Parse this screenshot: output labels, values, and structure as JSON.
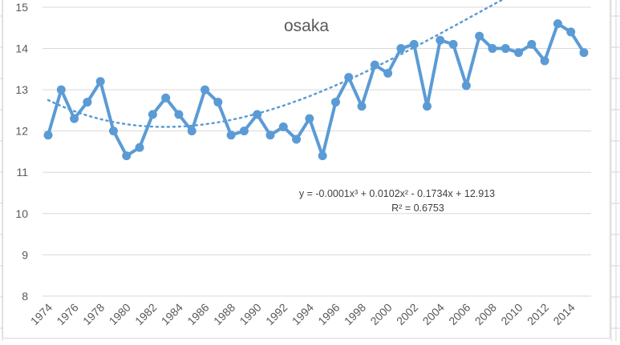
{
  "chart_data": {
    "type": "line",
    "title": "osaka",
    "xlabel": "",
    "ylabel": "",
    "ylim": [
      8,
      15
    ],
    "yticks": [
      8,
      9,
      10,
      11,
      12,
      13,
      14,
      15
    ],
    "x_tick_labels": [
      "1974",
      "1976",
      "1978",
      "1980",
      "1982",
      "1984",
      "1986",
      "1988",
      "1990",
      "1992",
      "1994",
      "1996",
      "1998",
      "2000",
      "2002",
      "2004",
      "2006",
      "2008",
      "2010",
      "2012",
      "2014"
    ],
    "grid": true,
    "legend": null,
    "x": [
      1974,
      1975,
      1976,
      1977,
      1978,
      1979,
      1980,
      1981,
      1982,
      1983,
      1984,
      1985,
      1986,
      1987,
      1988,
      1989,
      1990,
      1991,
      1992,
      1993,
      1994,
      1995,
      1996,
      1997,
      1998,
      1999,
      2000,
      2001,
      2002,
      2003,
      2004,
      2005,
      2006,
      2007,
      2008,
      2009,
      2010,
      2011,
      2012,
      2013,
      2014,
      2015
    ],
    "series": [
      {
        "name": "osaka",
        "color": "#5b9bd5",
        "values": [
          11.9,
          13.0,
          12.3,
          12.7,
          13.2,
          12.0,
          11.4,
          11.6,
          12.4,
          12.8,
          12.4,
          12.0,
          13.0,
          12.7,
          11.9,
          12.0,
          12.4,
          11.9,
          12.1,
          11.8,
          12.3,
          11.4,
          12.7,
          13.3,
          12.6,
          13.6,
          13.4,
          14.0,
          14.1,
          12.6,
          14.2,
          14.1,
          13.1,
          14.3,
          14.0,
          14.0,
          13.9,
          14.1,
          13.7,
          14.6,
          14.4,
          13.9
        ]
      }
    ],
    "trendline": {
      "type": "polynomial",
      "order": 3,
      "style": "dotted",
      "color": "#5b9bd5",
      "equation": "y = -0.0001x³ + 0.0102x² - 0.1734x + 12.913",
      "r_squared": "R² = 0.6753",
      "coefficients": [
        -0.0001,
        0.0102,
        -0.1734,
        12.913
      ]
    }
  },
  "labels": {
    "title": "osaka",
    "equation": "y = -0.0001x³ + 0.0102x² - 0.1734x + 12.913",
    "r_squared": "R² = 0.6753"
  }
}
